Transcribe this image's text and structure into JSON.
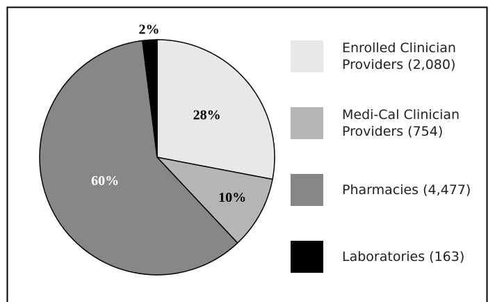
{
  "chart_data": {
    "type": "pie",
    "categories": [
      "Enrolled Clinician Providers (2,080)",
      "Medi-Cal Clinician Providers (754)",
      "Pharmacies (4,477)",
      "Laboratories (163)"
    ],
    "values": [
      28,
      10,
      60,
      2
    ],
    "value_labels": [
      "28%",
      "10%",
      "60%",
      "2%"
    ],
    "colors": [
      "#e8e8e8",
      "#b5b5b5",
      "#878787",
      "#000000"
    ],
    "label_colors": [
      "#000000",
      "#000000",
      "#ffffff",
      "#000000"
    ],
    "legend": "right"
  }
}
